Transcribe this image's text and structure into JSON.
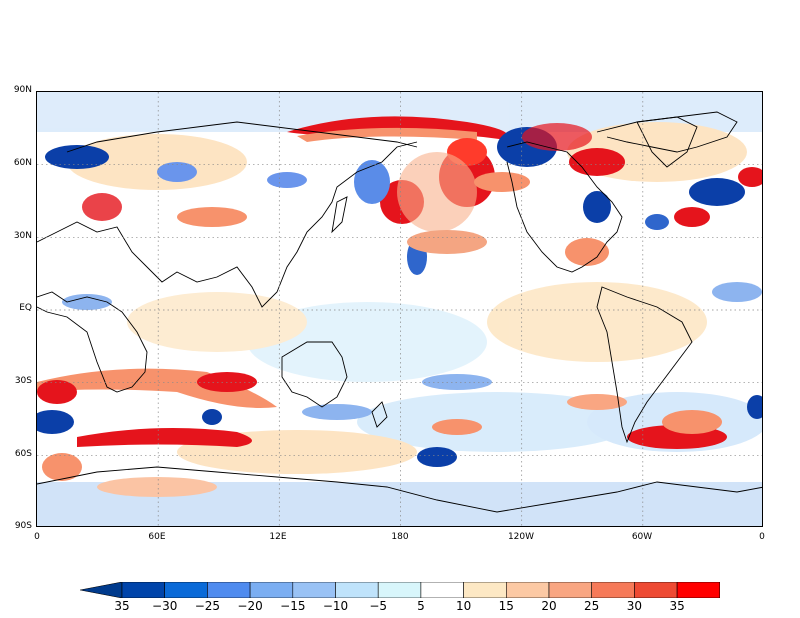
{
  "map": {
    "lat_labels": [
      "90N",
      "60N",
      "30N",
      "EQ",
      "30S",
      "60S",
      "90S"
    ],
    "lon_labels": [
      "0",
      "60E",
      "12E",
      "180",
      "120W",
      "60W",
      "0"
    ],
    "grid": true,
    "field_note_colors": {
      "strong_negative": "#0b3fa8",
      "negative": "#6a95ec",
      "weak_negative": "#bfe4fb",
      "neutral": "#ffffff",
      "weak_positive": "#fde3c0",
      "positive": "#f7926c",
      "strong_positive": "#e5141c"
    }
  },
  "colorbar": {
    "labels": [
      "35",
      "−30",
      "−25",
      "−20",
      "−15",
      "−10",
      "−5",
      "5",
      "10",
      "15",
      "20",
      "25",
      "30",
      "35"
    ],
    "colors": [
      "#0044aa",
      "#0a6ad8",
      "#4f8bef",
      "#7baef2",
      "#99c2f5",
      "#bfe3fb",
      "#d8f6fb",
      "#ffffff",
      "#fde8c4",
      "#fcc9a4",
      "#f9a682",
      "#f67a59",
      "#ee4a33",
      "#ff0000"
    ],
    "end_colors": {
      "left": "#003a8c",
      "right": "#a00000"
    }
  }
}
